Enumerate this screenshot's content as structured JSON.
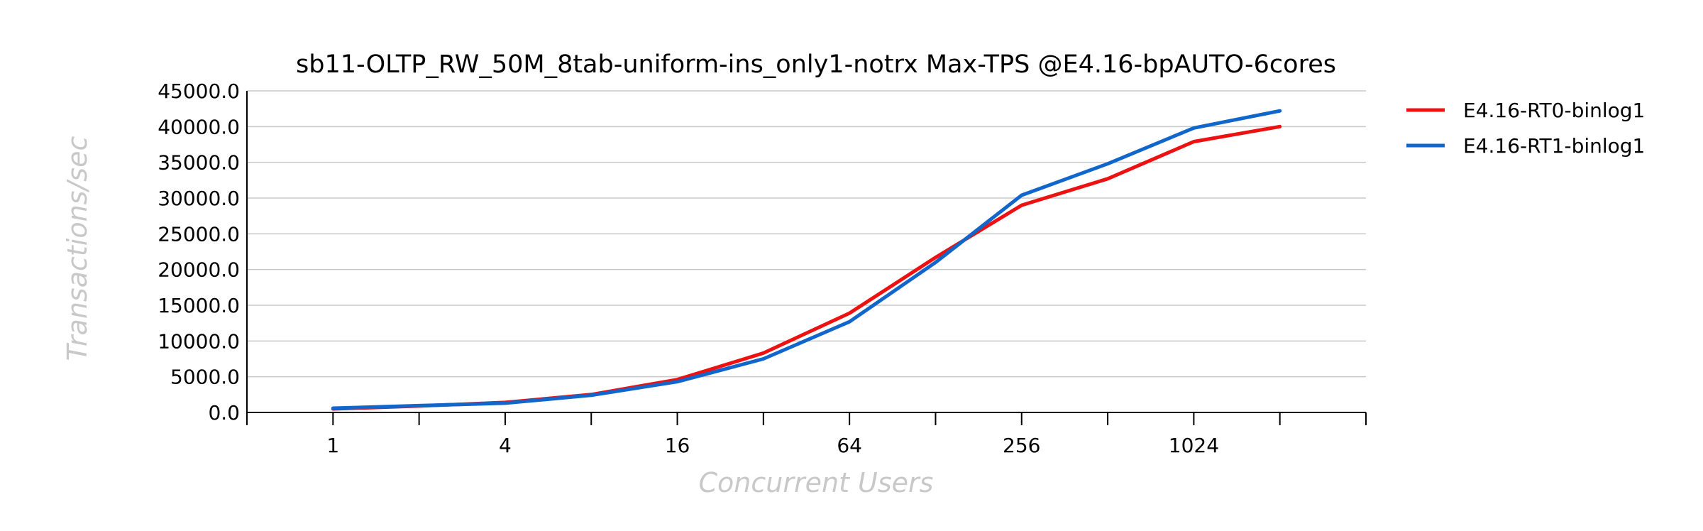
{
  "chart_data": {
    "type": "line",
    "title": "sb11-OLTP_RW_50M_8tab-uniform-ins_only1-notrx Max-TPS @E4.16-bpAUTO-6cores",
    "xlabel": "Concurrent Users",
    "ylabel": "Transactions/sec",
    "x": [
      1,
      2,
      4,
      8,
      16,
      32,
      64,
      128,
      256,
      512,
      1024,
      2048
    ],
    "x_tick_labels": [
      "1",
      "4",
      "16",
      "64",
      "256",
      "1024"
    ],
    "x_tick_label_values": [
      1,
      4,
      16,
      64,
      256,
      1024
    ],
    "x_scale": "log2",
    "xlim": [
      0.5,
      4096
    ],
    "y_tick_labels": [
      "0.0",
      "5000.0",
      "10000.0",
      "15000.0",
      "20000.0",
      "25000.0",
      "30000.0",
      "35000.0",
      "40000.0",
      "45000.0"
    ],
    "ylim": [
      0,
      45000
    ],
    "grid": "horizontal",
    "legend_position": "right",
    "series": [
      {
        "name": "E4.16-RT0-binlog1",
        "color": "#ee1111",
        "values": [
          500,
          900,
          1400,
          2500,
          4600,
          8300,
          13900,
          21700,
          29000,
          32700,
          37900,
          40000
        ]
      },
      {
        "name": "E4.16-RT1-binlog1",
        "color": "#1166cc",
        "values": [
          600,
          950,
          1300,
          2400,
          4300,
          7500,
          12700,
          21000,
          30400,
          34800,
          39800,
          42200
        ]
      }
    ]
  }
}
